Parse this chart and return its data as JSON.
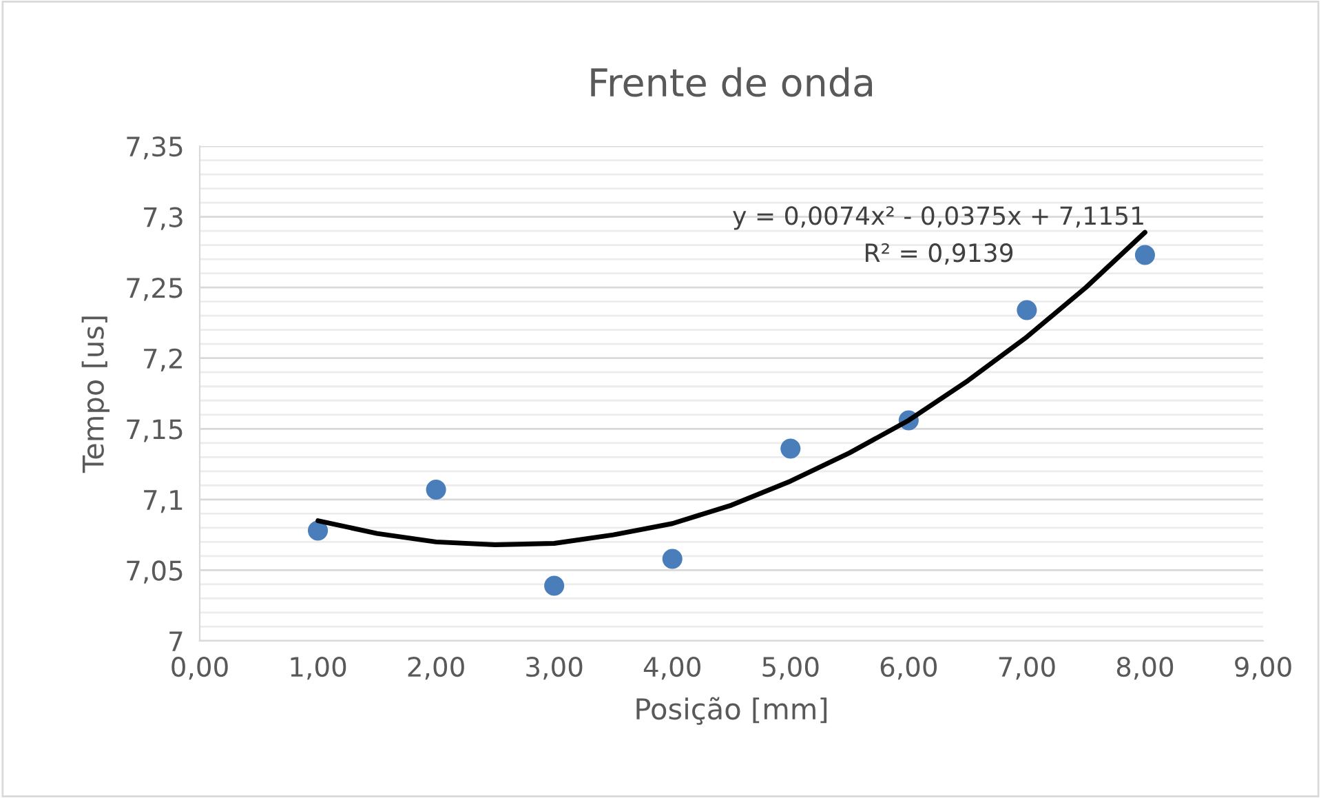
{
  "chart_data": {
    "type": "scatter",
    "title": "Frente de onda",
    "xlabel": "Posição [mm]",
    "ylabel": "Tempo [us]",
    "x": [
      1,
      2,
      3,
      4,
      5,
      6,
      7,
      8
    ],
    "series": [
      {
        "color": "#4a7ebb",
        "marker": "circle",
        "values": [
          7.078,
          7.107,
          7.039,
          7.058,
          7.136,
          7.156,
          7.234,
          7.273
        ]
      },
      {
        "type": "line",
        "color": "#000000",
        "x": [
          1,
          1.5,
          2,
          2.5,
          3,
          3.5,
          4,
          4.5,
          5,
          5.5,
          6,
          6.5,
          7,
          7.5,
          8
        ],
        "values": [
          7.085,
          7.076,
          7.07,
          7.068,
          7.069,
          7.075,
          7.083,
          7.096,
          7.113,
          7.133,
          7.156,
          7.184,
          7.215,
          7.25,
          7.289
        ]
      }
    ],
    "annotations": [
      "y = 0,0074x² - 0,0375x + 7,1151",
      "R² = 0,9139"
    ],
    "xlim": [
      0,
      9
    ],
    "ylim": [
      7,
      7.35
    ],
    "xticks": [
      {
        "value": 0,
        "label": "0,00"
      },
      {
        "value": 1,
        "label": "1,00"
      },
      {
        "value": 2,
        "label": "2,00"
      },
      {
        "value": 3,
        "label": "3,00"
      },
      {
        "value": 4,
        "label": "4,00"
      },
      {
        "value": 5,
        "label": "5,00"
      },
      {
        "value": 6,
        "label": "6,00"
      },
      {
        "value": 7,
        "label": "7,00"
      },
      {
        "value": 8,
        "label": "8,00"
      },
      {
        "value": 9,
        "label": "9,00"
      }
    ],
    "yticks": [
      7,
      {
        "value": 7.01,
        "label": null
      },
      {
        "value": 7.02,
        "label": null
      },
      {
        "value": 7.03,
        "label": null
      },
      {
        "value": 7.04,
        "label": null
      },
      {
        "value": 7.05,
        "label": "7,05"
      },
      {
        "value": 7.06,
        "label": null
      },
      {
        "value": 7.07,
        "label": null
      },
      {
        "value": 7.08,
        "label": null
      },
      {
        "value": 7.09,
        "label": null
      },
      {
        "value": 7.1,
        "label": "7,1"
      },
      {
        "value": 7.11,
        "label": null
      },
      {
        "value": 7.12,
        "label": null
      },
      {
        "value": 7.13,
        "label": null
      },
      {
        "value": 7.14,
        "label": null
      },
      {
        "value": 7.15,
        "label": "7,15"
      },
      {
        "value": 7.16,
        "label": null
      },
      {
        "value": 7.17,
        "label": null
      },
      {
        "value": 7.18,
        "label": null
      },
      {
        "value": 7.19,
        "label": null
      },
      {
        "value": 7.2,
        "label": "7,2"
      },
      {
        "value": 7.21,
        "label": null
      },
      {
        "value": 7.22,
        "label": null
      },
      {
        "value": 7.23,
        "label": null
      },
      {
        "value": 7.24,
        "label": null
      },
      {
        "value": 7.25,
        "label": "7,25"
      },
      {
        "value": 7.26,
        "label": null
      },
      {
        "value": 7.27,
        "label": null
      },
      {
        "value": 7.28,
        "label": null
      },
      {
        "value": 7.29,
        "label": null
      },
      {
        "value": 7.3,
        "label": "7,3"
      },
      {
        "value": 7.31,
        "label": null
      },
      {
        "value": 7.32,
        "label": null
      },
      {
        "value": 7.33,
        "label": null
      },
      {
        "value": 7.34,
        "label": null
      },
      {
        "value": 7.35,
        "label": "7,35"
      }
    ],
    "grid": "y",
    "legend": false
  }
}
